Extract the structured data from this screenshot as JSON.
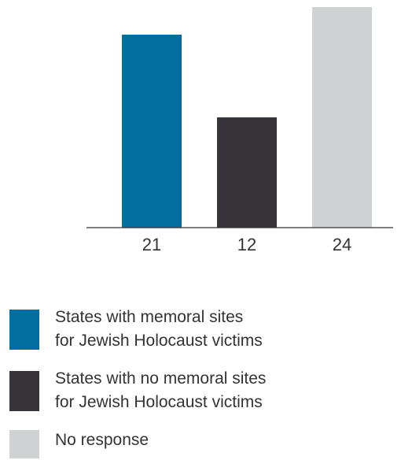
{
  "chart_data": {
    "type": "bar",
    "categories": [
      "21",
      "12",
      "24"
    ],
    "values": [
      21,
      12,
      24
    ],
    "colors": [
      "#036ea0",
      "#363438",
      "#d0d1d3"
    ],
    "ylim": [
      0,
      24
    ],
    "grid": false,
    "legend_placement": "bottom",
    "title": "",
    "xlabel": "",
    "ylabel": ""
  },
  "legend": {
    "items": [
      {
        "line1": "States with memoral sites",
        "line2": "for Jewish Holocaust victims",
        "color": "#036ea0"
      },
      {
        "line1": "States with no memoral sites",
        "line2": "for Jewish Holocaust victims",
        "color": "#363438"
      },
      {
        "line1": "No response",
        "line2": "",
        "color": "#d0d1d3"
      }
    ]
  }
}
